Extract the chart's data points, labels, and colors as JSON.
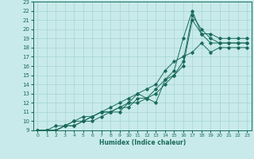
{
  "xlabel": "Humidex (Indice chaleur)",
  "ylabel": "",
  "bg_color": "#c8eaea",
  "grid_color": "#a8d4d4",
  "line_color": "#1a6b5a",
  "xlim": [
    -0.5,
    23.5
  ],
  "ylim": [
    9,
    23
  ],
  "xticks": [
    0,
    1,
    2,
    3,
    4,
    5,
    6,
    7,
    8,
    9,
    10,
    11,
    12,
    13,
    14,
    15,
    16,
    17,
    18,
    19,
    20,
    21,
    22,
    23
  ],
  "yticks": [
    9,
    10,
    11,
    12,
    13,
    14,
    15,
    16,
    17,
    18,
    19,
    20,
    21,
    22,
    23
  ],
  "lines": [
    [
      [
        0,
        9
      ],
      [
        1,
        9
      ],
      [
        2,
        9
      ],
      [
        3,
        9.5
      ],
      [
        4,
        10
      ],
      [
        5,
        10.5
      ],
      [
        6,
        10.5
      ],
      [
        7,
        11
      ],
      [
        8,
        11.5
      ],
      [
        9,
        12
      ],
      [
        10,
        12.5
      ],
      [
        11,
        13
      ],
      [
        12,
        12.5
      ],
      [
        13,
        13
      ],
      [
        14,
        14
      ],
      [
        15,
        15
      ],
      [
        16,
        16
      ],
      [
        17,
        21
      ],
      [
        18,
        19.5
      ],
      [
        19,
        18.5
      ],
      [
        20,
        18.5
      ],
      [
        21,
        18.5
      ],
      [
        22,
        18.5
      ],
      [
        23,
        18.5
      ]
    ],
    [
      [
        0,
        9
      ],
      [
        1,
        9
      ],
      [
        2,
        9.5
      ],
      [
        3,
        9.5
      ],
      [
        4,
        10
      ],
      [
        5,
        10
      ],
      [
        6,
        10.5
      ],
      [
        7,
        11
      ],
      [
        8,
        11
      ],
      [
        9,
        11.5
      ],
      [
        10,
        12
      ],
      [
        11,
        12
      ],
      [
        12,
        12.5
      ],
      [
        13,
        13.5
      ],
      [
        14,
        14.5
      ],
      [
        15,
        15.5
      ],
      [
        16,
        19
      ],
      [
        17,
        22
      ],
      [
        18,
        19.5
      ],
      [
        19,
        19.5
      ],
      [
        20,
        19
      ],
      [
        21,
        19
      ],
      [
        22,
        19
      ],
      [
        23,
        19
      ]
    ],
    [
      [
        0,
        9
      ],
      [
        1,
        9
      ],
      [
        2,
        9
      ],
      [
        3,
        9.5
      ],
      [
        4,
        9.5
      ],
      [
        5,
        10
      ],
      [
        6,
        10.5
      ],
      [
        7,
        11
      ],
      [
        8,
        11
      ],
      [
        9,
        11.5
      ],
      [
        10,
        11.5
      ],
      [
        11,
        12.5
      ],
      [
        12,
        12.5
      ],
      [
        13,
        12
      ],
      [
        14,
        14.5
      ],
      [
        15,
        15
      ],
      [
        16,
        16.5
      ],
      [
        17,
        21.5
      ],
      [
        18,
        20
      ],
      [
        19,
        19
      ],
      [
        20,
        18.5
      ],
      [
        21,
        18.5
      ],
      [
        22,
        18.5
      ],
      [
        23,
        18.5
      ]
    ],
    [
      [
        0,
        9
      ],
      [
        1,
        9
      ],
      [
        2,
        9
      ],
      [
        3,
        9.5
      ],
      [
        4,
        9.5
      ],
      [
        5,
        10
      ],
      [
        6,
        10
      ],
      [
        7,
        10.5
      ],
      [
        8,
        11
      ],
      [
        9,
        11
      ],
      [
        10,
        12
      ],
      [
        11,
        13
      ],
      [
        12,
        13.5
      ],
      [
        13,
        14
      ],
      [
        14,
        15.5
      ],
      [
        15,
        16.5
      ],
      [
        16,
        17
      ],
      [
        17,
        17.5
      ],
      [
        18,
        18.5
      ],
      [
        19,
        17.5
      ],
      [
        20,
        18
      ],
      [
        21,
        18
      ],
      [
        22,
        18
      ],
      [
        23,
        18
      ]
    ]
  ]
}
